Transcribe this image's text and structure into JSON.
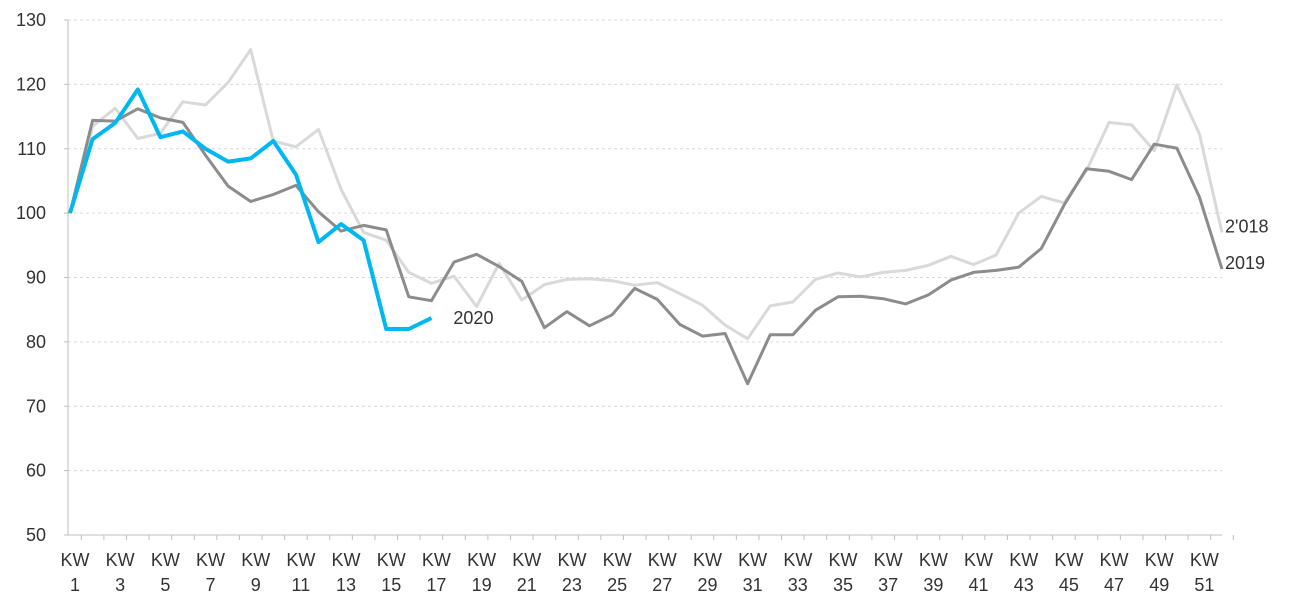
{
  "chart_data": {
    "type": "line",
    "categories": [
      "KW 1",
      null,
      "KW 3",
      null,
      "KW 5",
      null,
      "KW 7",
      null,
      "KW 9",
      null,
      "KW 11",
      null,
      "KW 13",
      null,
      "KW 15",
      null,
      "KW 17",
      null,
      "KW 19",
      null,
      "KW 21",
      null,
      "KW 23",
      null,
      "KW 25",
      null,
      "KW 27",
      null,
      "KW 29",
      null,
      "KW 31",
      null,
      "KW 33",
      null,
      "KW 35",
      null,
      "KW 37",
      null,
      "KW 39",
      null,
      "KW 41",
      null,
      "KW 43",
      null,
      "KW 45",
      null,
      "KW 47",
      null,
      "KW 49",
      null,
      "KW 51",
      null
    ],
    "series": [
      {
        "name": "2'018",
        "color": "#d9d9d9",
        "values": [
          100,
          113.5,
          116.3,
          111.6,
          112.4,
          117.3,
          116.8,
          120.3,
          125.4,
          111.2,
          110.3,
          113,
          103.7,
          97,
          95.8,
          90.8,
          89.1,
          90.2,
          85.5,
          92.2,
          86.5,
          88.9,
          89.7,
          89.8,
          89.5,
          88.8,
          89.2,
          87.5,
          85.7,
          82.6,
          80.5,
          85.6,
          86.2,
          89.7,
          90.7,
          90.1,
          90.8,
          91.1,
          91.9,
          93.3,
          92,
          93.5,
          100,
          102.6,
          101.6,
          106.6,
          114.1,
          113.7,
          109.7,
          119.9,
          112.3,
          97
        ]
      },
      {
        "name": "2019",
        "color": "#8c8c8c",
        "values": [
          100,
          114.4,
          114.3,
          116.2,
          114.8,
          114.1,
          109,
          104.2,
          101.8,
          102.9,
          104.3,
          100.2,
          97.2,
          98.1,
          97.4,
          87,
          86.4,
          92.4,
          93.6,
          91.7,
          89.4,
          82.2,
          84.7,
          82.5,
          84.2,
          88.3,
          86.6,
          82.7,
          80.9,
          81.3,
          73.5,
          81.1,
          81.1,
          84.9,
          87,
          87.1,
          86.7,
          85.9,
          87.3,
          89.6,
          90.8,
          91.1,
          91.6,
          94.5,
          101.2,
          106.9,
          106.5,
          105.2,
          110.7,
          110.1,
          102.5,
          91.3
        ]
      },
      {
        "name": "2020",
        "color": "#00b8f0",
        "values": [
          100,
          111.5,
          114,
          119.2,
          111.8,
          112.7,
          110,
          108,
          108.5,
          111.2,
          106,
          95.5,
          98.3,
          95.8,
          82,
          82,
          83.7,
          null,
          null,
          null,
          null,
          null,
          null,
          null,
          null,
          null,
          null,
          null,
          null,
          null,
          null,
          null,
          null,
          null,
          null,
          null,
          null,
          null,
          null,
          null,
          null,
          null,
          null,
          null,
          null,
          null,
          null,
          null,
          null,
          null,
          null,
          null
        ]
      }
    ],
    "ylim": [
      50,
      130
    ],
    "yticks": [
      50,
      60,
      70,
      80,
      90,
      100,
      110,
      120,
      130
    ],
    "grid": true
  }
}
